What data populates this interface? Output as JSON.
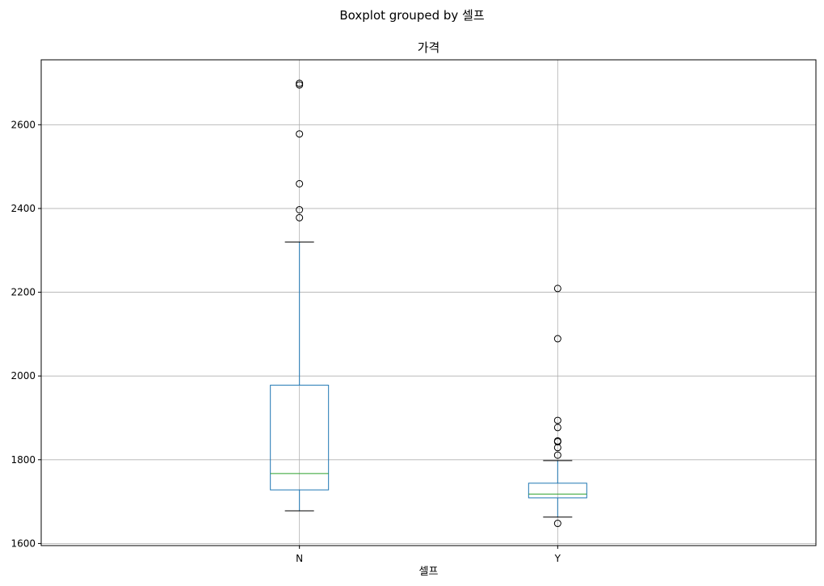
{
  "chart_data": {
    "type": "boxplot",
    "suptitle": "Boxplot grouped by 셀프",
    "title": "가격",
    "xlabel": "셀프",
    "ylabel": "",
    "ylim": [
      1595,
      2755
    ],
    "yticks": [
      1600,
      1800,
      2000,
      2200,
      2400,
      2600
    ],
    "grid": true,
    "colors": {
      "box": "#1f77b4",
      "median": "#2ca02c",
      "whisker": "#1f77b4",
      "cap": "#000000",
      "flier": "#000000",
      "grid": "#b0b0b0"
    },
    "groups": [
      {
        "name": "N",
        "whisker_low": 1678,
        "q1": 1728,
        "median": 1767,
        "q3": 1978,
        "whisker_high": 2320,
        "fliers": [
          2378,
          2397,
          2459,
          2578,
          2695,
          2699
        ]
      },
      {
        "name": "Y",
        "whisker_low": 1663,
        "q1": 1709,
        "median": 1718,
        "q3": 1744,
        "whisker_high": 1798,
        "fliers": [
          1648,
          1811,
          1829,
          1843,
          1845,
          1877,
          1894,
          2089,
          2209
        ]
      }
    ]
  }
}
